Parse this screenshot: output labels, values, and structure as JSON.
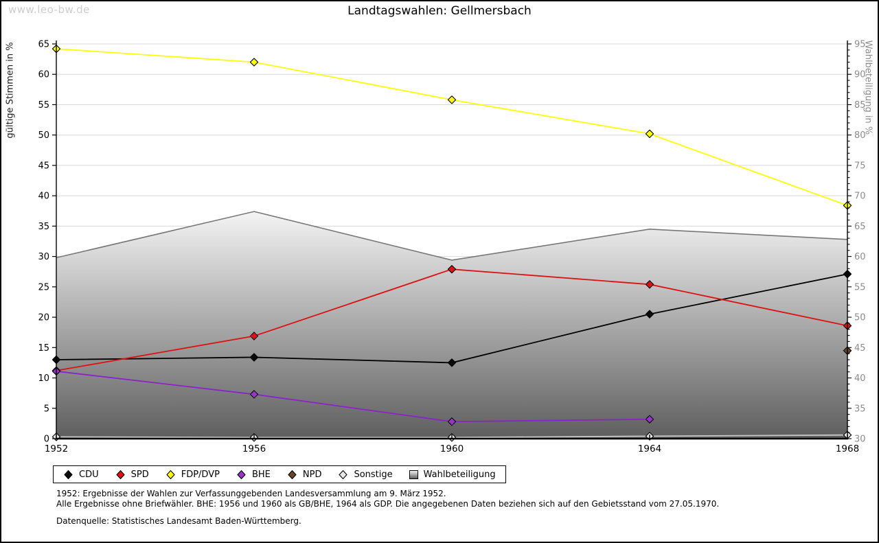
{
  "watermark": "www.leo-bw.de",
  "title": "Landtagswahlen: Gellmersbach",
  "chart_data": {
    "type": "line",
    "x_categories": [
      "1952",
      "1956",
      "1960",
      "1964",
      "1968"
    ],
    "left_axis": {
      "label": "gültige Stimmen in %",
      "min": 0,
      "max": 65,
      "step": 5
    },
    "right_axis": {
      "label": "Wahlbeteiligung in %",
      "min": 30,
      "max": 95,
      "step": 5
    },
    "grid": true,
    "legend_position": "bottom",
    "series": [
      {
        "name": "CDU",
        "color": "#000000",
        "marker_fill": "#0a0a0a",
        "values": [
          13.0,
          13.4,
          12.5,
          20.5,
          27.1
        ]
      },
      {
        "name": "SPD",
        "color": "#dd1111",
        "marker_fill": "#dd1111",
        "values": [
          11.2,
          16.9,
          27.9,
          25.4,
          18.6
        ]
      },
      {
        "name": "FDP/DVP",
        "color": "#ffff00",
        "marker_fill": "#ffff00",
        "values": [
          64.2,
          62.0,
          55.8,
          50.2,
          38.4
        ]
      },
      {
        "name": "BHE",
        "color": "#8b22cc",
        "marker_fill": "#9933cc",
        "values": [
          11.1,
          7.3,
          2.8,
          3.2,
          null
        ]
      },
      {
        "name": "NPD",
        "color": "#5e3a1c",
        "marker_fill": "#6b4528",
        "values": [
          null,
          null,
          null,
          null,
          14.5
        ]
      },
      {
        "name": "Sonstige",
        "color": "#c8c8c8",
        "marker_fill": "#e8e8e8",
        "values": [
          0.3,
          0.2,
          0.2,
          0.4,
          0.6
        ]
      }
    ],
    "area_series": {
      "name": "Wahlbeteiligung",
      "axis": "right",
      "values": [
        59.8,
        67.4,
        59.4,
        64.5,
        62.8
      ],
      "fill_top": "#f4f4f4",
      "fill_bottom": "#5e5e5e",
      "stroke": "#777777"
    }
  },
  "footnotes": {
    "line1": "1952: Ergebnisse der Wahlen zur Verfassunggebenden Landesversammlung am 9. März 1952.",
    "line2": "Alle Ergebnisse ohne Briefwähler. BHE: 1956 und 1960 als GB/BHE, 1964 als GDP. Die angegebenen Daten beziehen sich auf den Gebietsstand vom 27.05.1970.",
    "source": "Datenquelle: Statistisches Landesamt Baden-Württemberg."
  }
}
